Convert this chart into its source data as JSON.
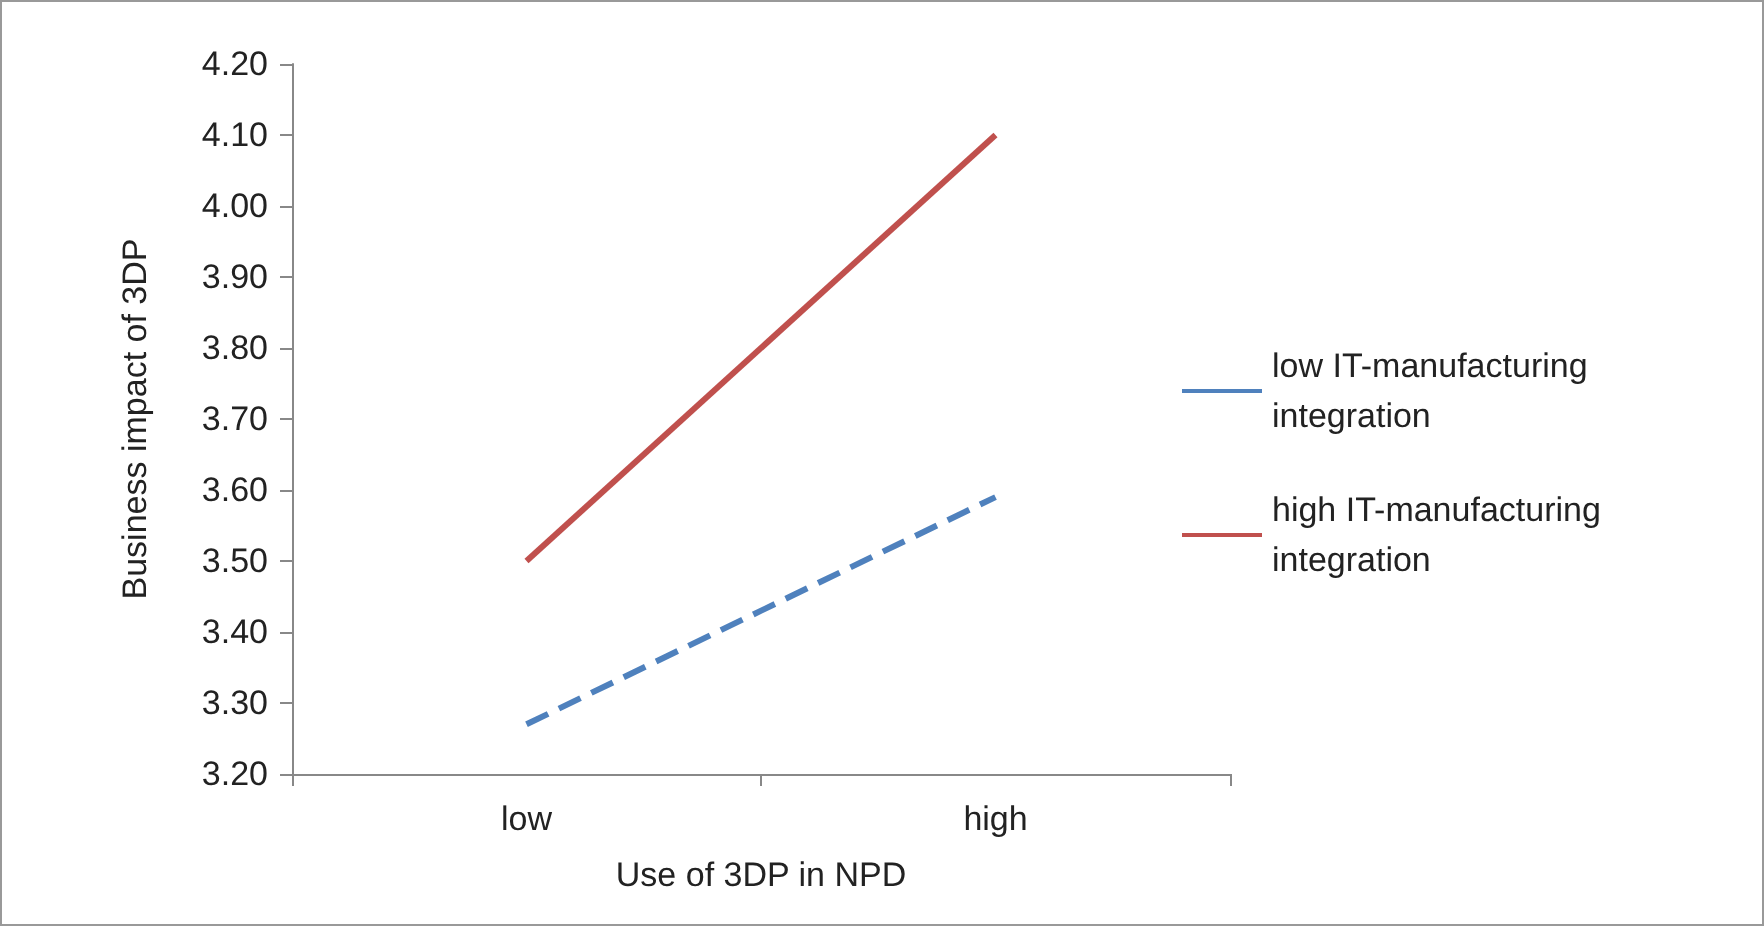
{
  "chart_data": {
    "type": "line",
    "xlabel": "Use of 3DP in NPD",
    "ylabel": "Business impact of 3DP",
    "categories": [
      "low",
      "high"
    ],
    "series": [
      {
        "name": "low IT-manufacturing integration",
        "color": "#4f81bd",
        "values": [
          3.27,
          3.59
        ],
        "line_style": "dashed"
      },
      {
        "name": "high IT-manufacturing integration",
        "color": "#c0504d",
        "values": [
          3.5,
          4.1
        ],
        "line_style": "solid"
      }
    ],
    "ylim": [
      3.2,
      4.2
    ],
    "yticks": [
      {
        "value": 3.2,
        "label": "3.20"
      },
      {
        "value": 3.3,
        "label": "3.30"
      },
      {
        "value": 3.4,
        "label": "3.40"
      },
      {
        "value": 3.5,
        "label": "3.50"
      },
      {
        "value": 3.6,
        "label": "3.60"
      },
      {
        "value": 3.7,
        "label": "3.70"
      },
      {
        "value": 3.8,
        "label": "3.80"
      },
      {
        "value": 3.9,
        "label": "3.90"
      },
      {
        "value": 4.0,
        "label": "4.00"
      },
      {
        "value": 4.1,
        "label": "4.10"
      },
      {
        "value": 4.2,
        "label": "4.20"
      }
    ],
    "grid": false,
    "legend": "right",
    "marker": "none"
  }
}
